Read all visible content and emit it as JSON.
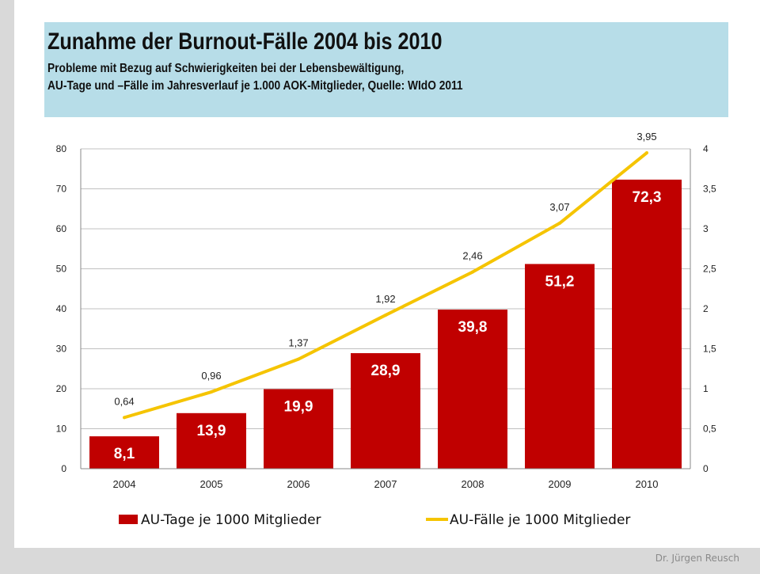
{
  "header": {
    "title": "Zunahme der Burnout-Fälle 2004 bis 2010",
    "subtitle_line1": "Probleme mit Bezug auf Schwierigkeiten bei der Lebensbewältigung,",
    "subtitle_line2": "AU-Tage und –Fälle im Jahresverlauf je 1.000 AOK-Mitglieder,  Quelle: WIdO 2011"
  },
  "footer": {
    "credit": "Dr. Jürgen Reusch"
  },
  "colors": {
    "bar": "#c00000",
    "line": "#f5c400",
    "header_bg": "#b7dde8",
    "grid": "#c0c0c0"
  },
  "chart_data": {
    "type": "bar",
    "categories": [
      "2004",
      "2005",
      "2006",
      "2007",
      "2008",
      "2009",
      "2010"
    ],
    "series": [
      {
        "name": "AU-Tage je 1000 Mitglieder",
        "type": "bar",
        "axis": "left",
        "values": [
          8.1,
          13.9,
          19.9,
          28.9,
          39.8,
          51.2,
          72.3
        ],
        "labels": [
          "8,1",
          "13,9",
          "19,9",
          "28,9",
          "39,8",
          "51,2",
          "72,3"
        ]
      },
      {
        "name": "AU-Fälle je 1000 Mitglieder",
        "type": "line",
        "axis": "right",
        "values": [
          0.64,
          0.96,
          1.37,
          1.92,
          2.46,
          3.07,
          3.95
        ],
        "labels": [
          "0,64",
          "0,96",
          "1,37",
          "1,92",
          "2,46",
          "3,07",
          "3,95"
        ]
      }
    ],
    "y_left": {
      "range": [
        0,
        80
      ],
      "ticks": [
        "0",
        "10",
        "20",
        "30",
        "40",
        "50",
        "60",
        "70",
        "80"
      ]
    },
    "y_right": {
      "range": [
        0,
        4
      ],
      "ticks": [
        "0",
        "0,5",
        "1",
        "1,5",
        "2",
        "2,5",
        "3",
        "3,5",
        "4"
      ]
    },
    "grid": true,
    "legend_position": "bottom"
  }
}
